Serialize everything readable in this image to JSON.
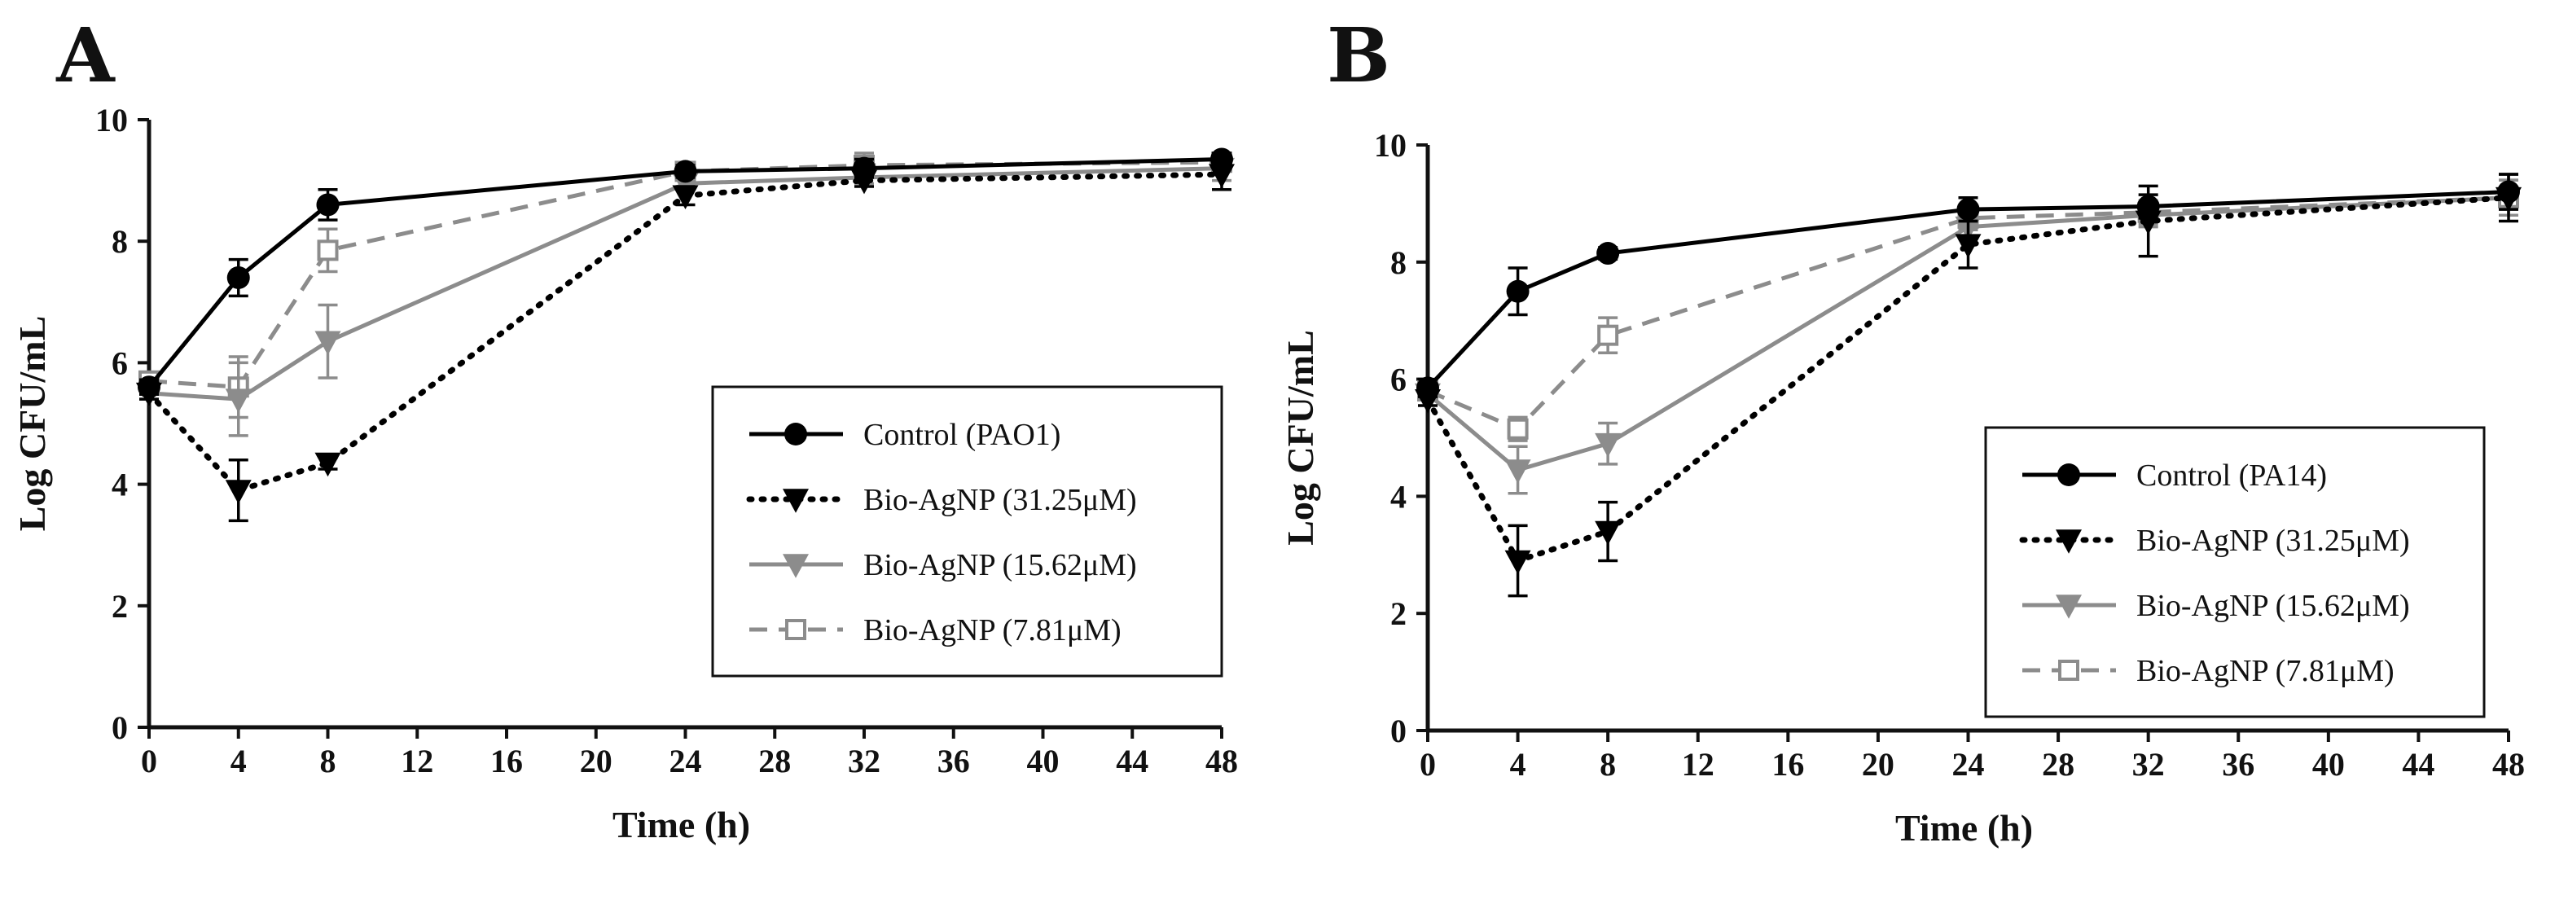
{
  "chart_data": [
    {
      "panel": "A",
      "type": "line",
      "xlabel": "Time (h)",
      "ylabel": "Log CFU/mL",
      "xlim": [
        0,
        48
      ],
      "ylim": [
        0,
        10
      ],
      "xticks": [
        0,
        4,
        8,
        12,
        16,
        20,
        24,
        28,
        32,
        36,
        40,
        44,
        48
      ],
      "yticks": [
        0,
        2,
        4,
        6,
        8,
        10
      ],
      "legend_position": "center-right",
      "series": [
        {
          "name": "Control (PAO1)",
          "style": "solid",
          "marker": "circle",
          "color": "#000000",
          "x": [
            0,
            4,
            8,
            24,
            32,
            48
          ],
          "y": [
            5.6,
            7.4,
            8.6,
            9.15,
            9.2,
            9.35
          ],
          "err": [
            0.12,
            0.3,
            0.25,
            0.1,
            0.15,
            0.1
          ]
        },
        {
          "name": "Bio-AgNP (31.25μM)",
          "style": "dotted",
          "marker": "triangle-down",
          "color": "#000000",
          "x": [
            0,
            4,
            8,
            24,
            32,
            48
          ],
          "y": [
            5.5,
            3.9,
            4.35,
            8.75,
            9.0,
            9.1
          ],
          "err": [
            0.1,
            0.5,
            0.1,
            0.15,
            0.1,
            0.25
          ]
        },
        {
          "name": "Bio-AgNP (15.62μM)",
          "style": "solid",
          "marker": "triangle-down",
          "color": "#8c8c8c",
          "x": [
            0,
            4,
            8,
            24,
            32,
            48
          ],
          "y": [
            5.5,
            5.4,
            6.35,
            8.95,
            9.05,
            9.2
          ],
          "err": [
            0.1,
            0.6,
            0.6,
            0.1,
            0.1,
            0.2
          ]
        },
        {
          "name": "Bio-AgNP (7.81μM)",
          "style": "dashed",
          "marker": "square-open",
          "color": "#8c8c8c",
          "x": [
            0,
            4,
            8,
            24,
            32,
            48
          ],
          "y": [
            5.7,
            5.6,
            7.85,
            9.15,
            9.25,
            9.3
          ],
          "err": [
            0.1,
            0.5,
            0.35,
            0.1,
            0.2,
            0.1
          ]
        }
      ]
    },
    {
      "panel": "B",
      "type": "line",
      "xlabel": "Time (h)",
      "ylabel": "Log CFU/mL",
      "xlim": [
        0,
        48
      ],
      "ylim": [
        0,
        10
      ],
      "xticks": [
        0,
        4,
        8,
        12,
        16,
        20,
        24,
        28,
        32,
        36,
        40,
        44,
        48
      ],
      "yticks": [
        0,
        2,
        4,
        6,
        8,
        10
      ],
      "legend_position": "center-right",
      "series": [
        {
          "name": "Control (PA14)",
          "style": "solid",
          "marker": "circle",
          "color": "#000000",
          "x": [
            0,
            4,
            8,
            24,
            32,
            48
          ],
          "y": [
            5.85,
            7.5,
            8.15,
            8.9,
            8.95,
            9.2
          ],
          "err": [
            0.15,
            0.4,
            0.1,
            0.2,
            0.2,
            0.3
          ]
        },
        {
          "name": "Bio-AgNP (31.25μM)",
          "style": "dotted",
          "marker": "triangle-down",
          "color": "#000000",
          "x": [
            0,
            4,
            8,
            24,
            32,
            48
          ],
          "y": [
            5.65,
            2.9,
            3.4,
            8.3,
            8.7,
            9.1
          ],
          "err": [
            0.1,
            0.6,
            0.5,
            0.4,
            0.6,
            0.4
          ]
        },
        {
          "name": "Bio-AgNP (15.62μM)",
          "style": "solid",
          "marker": "triangle-down",
          "color": "#8c8c8c",
          "x": [
            0,
            4,
            8,
            24,
            32,
            48
          ],
          "y": [
            5.75,
            4.45,
            4.9,
            8.6,
            8.8,
            9.1
          ],
          "err": [
            0.1,
            0.4,
            0.35,
            0.2,
            0.2,
            0.3
          ]
        },
        {
          "name": "Bio-AgNP (7.81μM)",
          "style": "dashed",
          "marker": "square-open",
          "color": "#8c8c8c",
          "x": [
            0,
            4,
            8,
            24,
            32,
            48
          ],
          "y": [
            5.8,
            5.15,
            6.75,
            8.75,
            8.85,
            9.1
          ],
          "err": [
            0.1,
            0.2,
            0.3,
            0.2,
            0.2,
            0.3
          ]
        }
      ]
    }
  ]
}
